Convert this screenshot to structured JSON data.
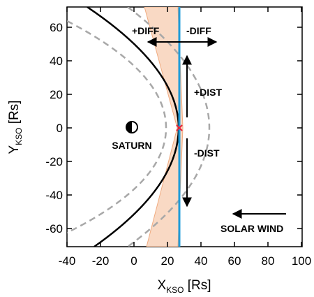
{
  "axes": {
    "x_label": "X",
    "x_sub": "KSO",
    "x_unit": " [Rs]",
    "y_label": "Y",
    "y_sub": "KSO",
    "y_unit": " [Rs]",
    "x_ticks": [
      "-40",
      "-20",
      "0",
      "20",
      "40",
      "60",
      "80",
      "100"
    ],
    "y_ticks": [
      "60",
      "40",
      "20",
      "0",
      "-20",
      "-40",
      "-60"
    ]
  },
  "labels": {
    "planet": "SATURN",
    "plus_diff": "+DIFF",
    "minus_diff": "-DIFF",
    "plus_dist": "+DIST",
    "minus_dist": "-DIST",
    "solar_wind": "SOLAR WIND"
  },
  "colors": {
    "bow_shock": "#000000",
    "bounds": "#a8a8a8",
    "spacecraft_line": "#1f9bd8",
    "cone_fill": "#f9d9c4",
    "cone_edge": "#f0ab80",
    "marker": "#e8253a"
  }
}
